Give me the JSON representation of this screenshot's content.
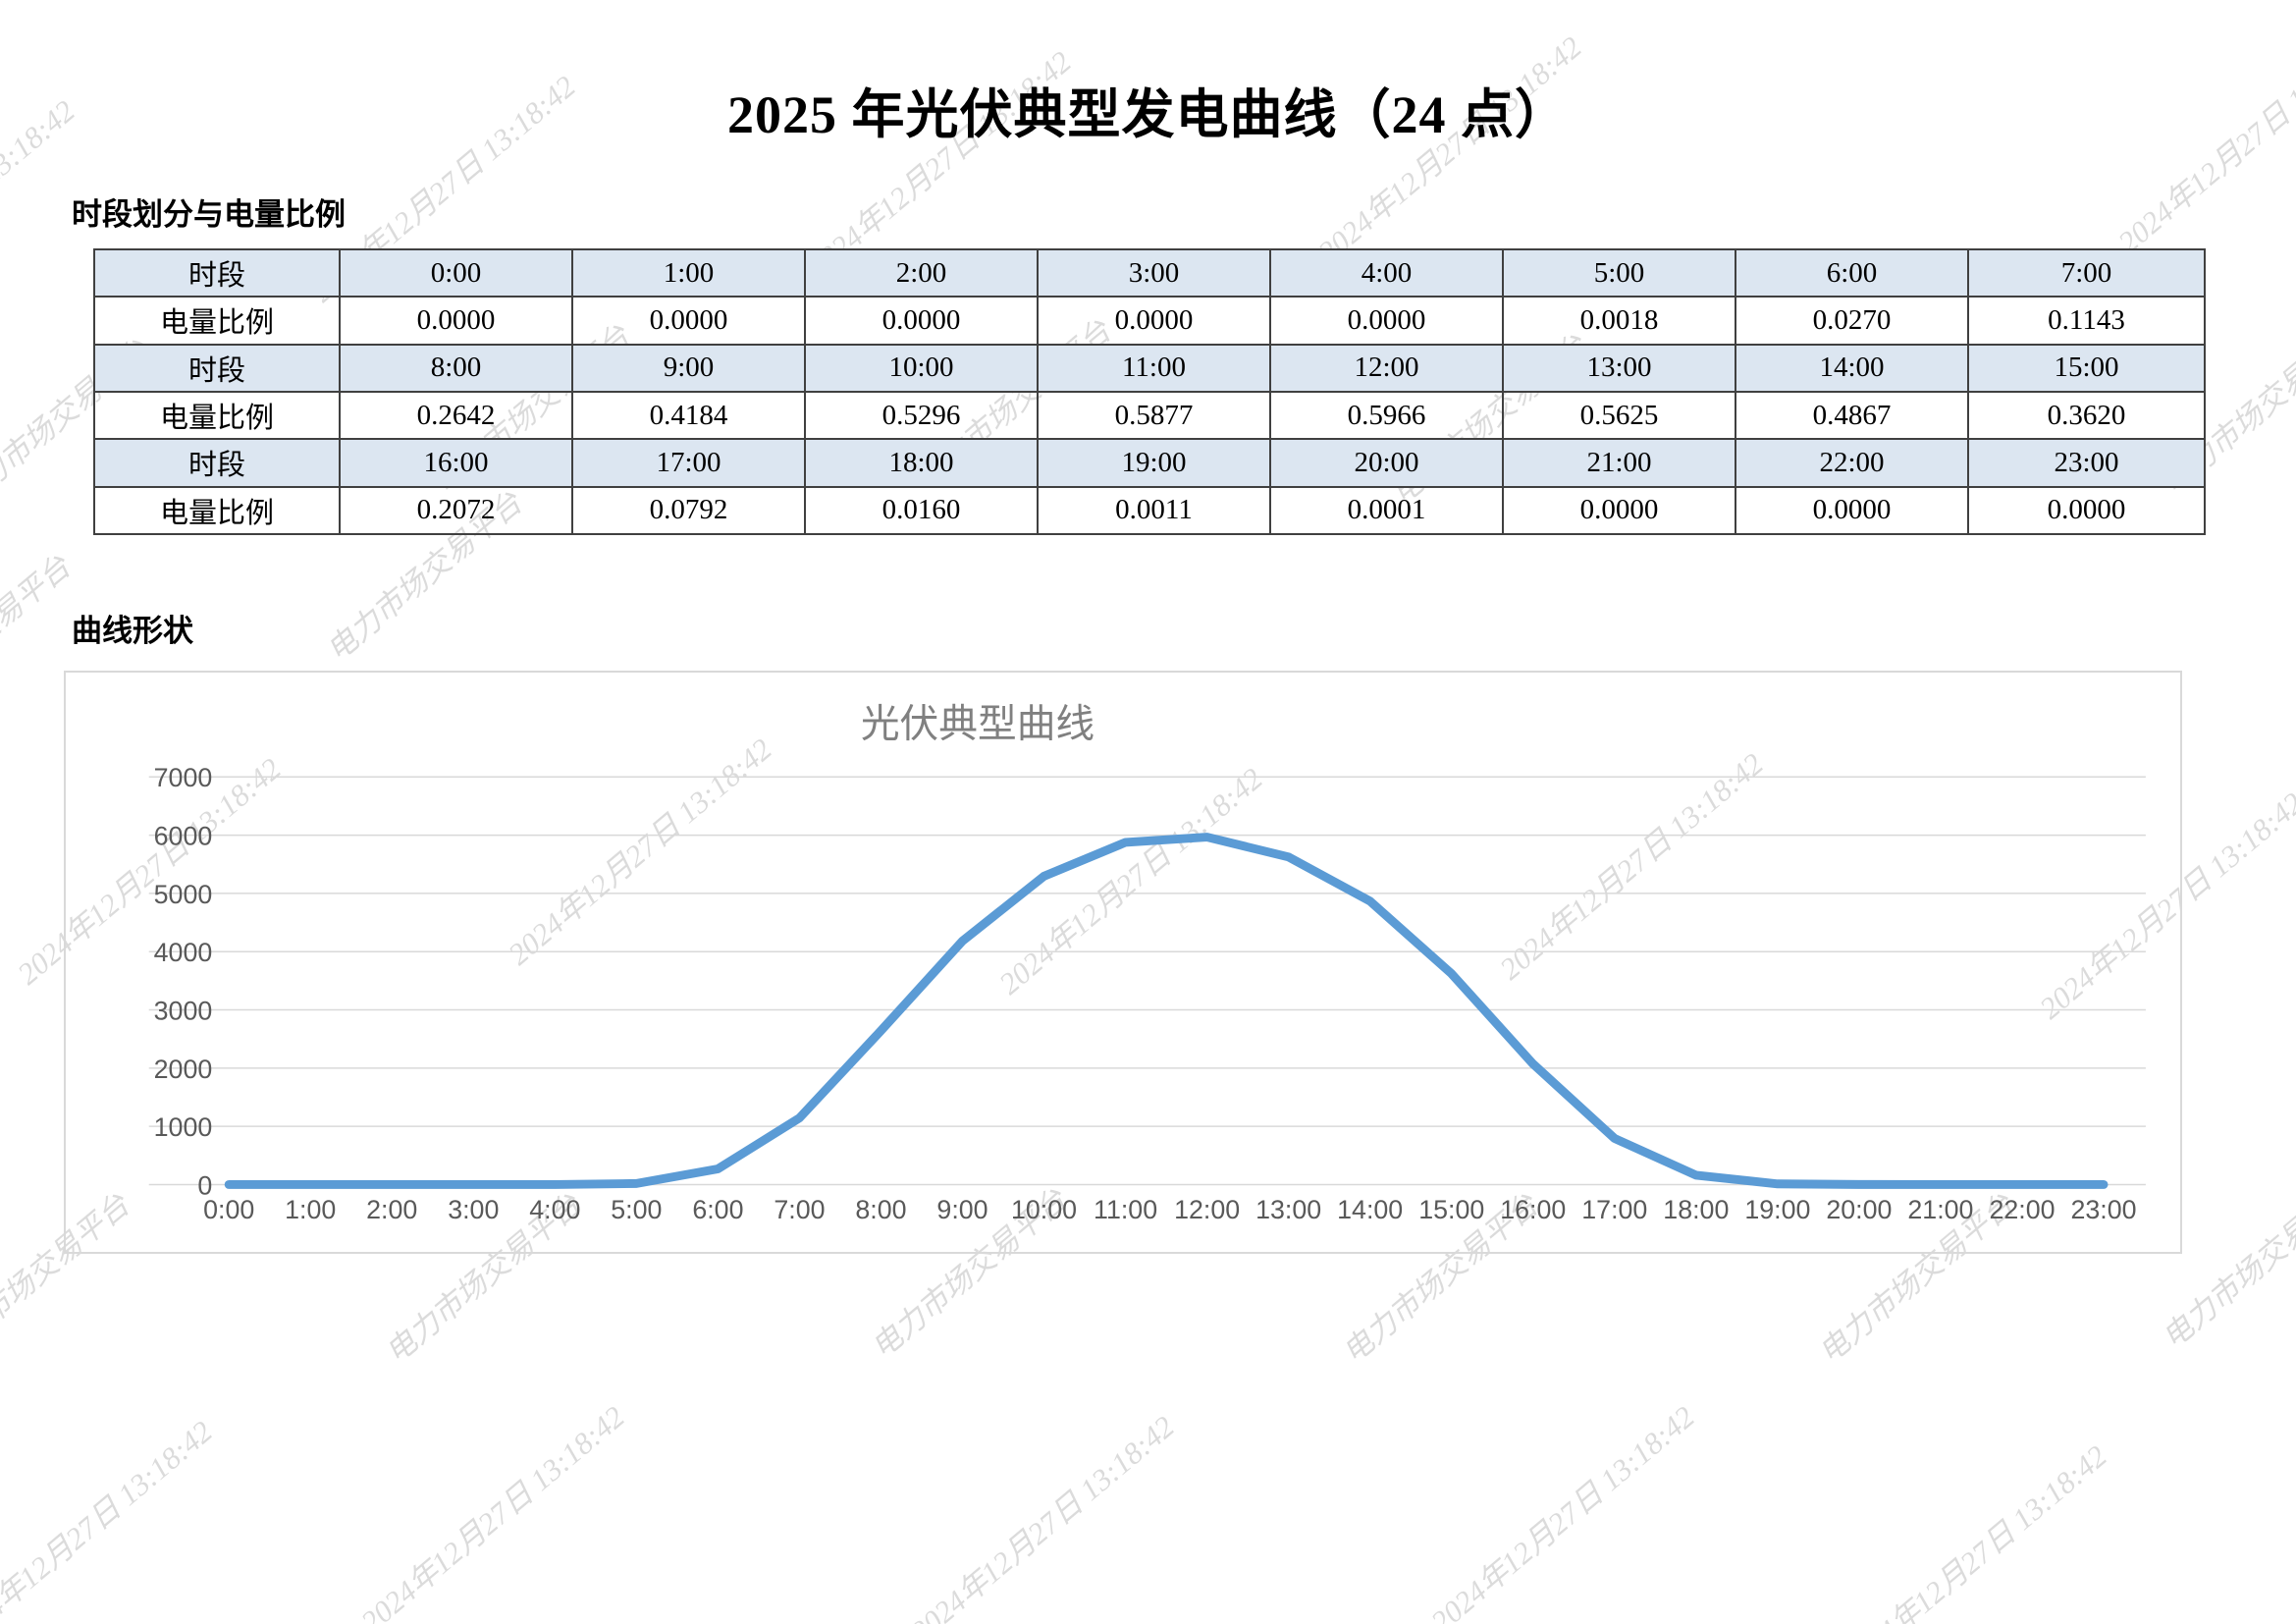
{
  "page": {
    "title": "2025 年光伏典型发电曲线（24 点）",
    "section1_heading": "时段划分与电量比例",
    "section2_heading": "曲线形状"
  },
  "table": {
    "header_bg": "#dce6f1",
    "rows": [
      {
        "type": "header",
        "label": "时段",
        "values": [
          "0:00",
          "1:00",
          "2:00",
          "3:00",
          "4:00",
          "5:00",
          "6:00",
          "7:00"
        ]
      },
      {
        "type": "data",
        "label": "电量比例",
        "values": [
          "0.0000",
          "0.0000",
          "0.0000",
          "0.0000",
          "0.0000",
          "0.0018",
          "0.0270",
          "0.1143"
        ]
      },
      {
        "type": "header",
        "label": "时段",
        "values": [
          "8:00",
          "9:00",
          "10:00",
          "11:00",
          "12:00",
          "13:00",
          "14:00",
          "15:00"
        ]
      },
      {
        "type": "data",
        "label": "电量比例",
        "values": [
          "0.2642",
          "0.4184",
          "0.5296",
          "0.5877",
          "0.5966",
          "0.5625",
          "0.4867",
          "0.3620"
        ]
      },
      {
        "type": "header",
        "label": "时段",
        "values": [
          "16:00",
          "17:00",
          "18:00",
          "19:00",
          "20:00",
          "21:00",
          "22:00",
          "23:00"
        ]
      },
      {
        "type": "data",
        "label": "电量比例",
        "values": [
          "0.2072",
          "0.0792",
          "0.0160",
          "0.0011",
          "0.0001",
          "0.0000",
          "0.0000",
          "0.0000"
        ]
      }
    ]
  },
  "chart_data": {
    "type": "line",
    "title": "光伏典型曲线",
    "x": [
      "0:00",
      "1:00",
      "2:00",
      "3:00",
      "4:00",
      "5:00",
      "6:00",
      "7:00",
      "8:00",
      "9:00",
      "10:00",
      "11:00",
      "12:00",
      "13:00",
      "14:00",
      "15:00",
      "16:00",
      "17:00",
      "18:00",
      "19:00",
      "20:00",
      "21:00",
      "22:00",
      "23:00"
    ],
    "values": [
      0,
      0,
      0,
      0,
      0,
      18,
      270,
      1143,
      2642,
      4184,
      5296,
      5877,
      5966,
      5625,
      4867,
      3620,
      2072,
      792,
      160,
      11,
      1,
      0,
      0,
      0
    ],
    "xlabel": "",
    "ylabel": "",
    "ylim": [
      0,
      7000
    ],
    "ytick_step": 1000,
    "grid": true,
    "legend": "none",
    "line_color": "#5b9bd5",
    "grid_color": "#d9d9d9",
    "tick_color": "#595959",
    "title_color": "#808080"
  },
  "watermark": {
    "date_text": "2024年12月27日 13:18:42",
    "platform_text": "电力市场交易平台"
  }
}
